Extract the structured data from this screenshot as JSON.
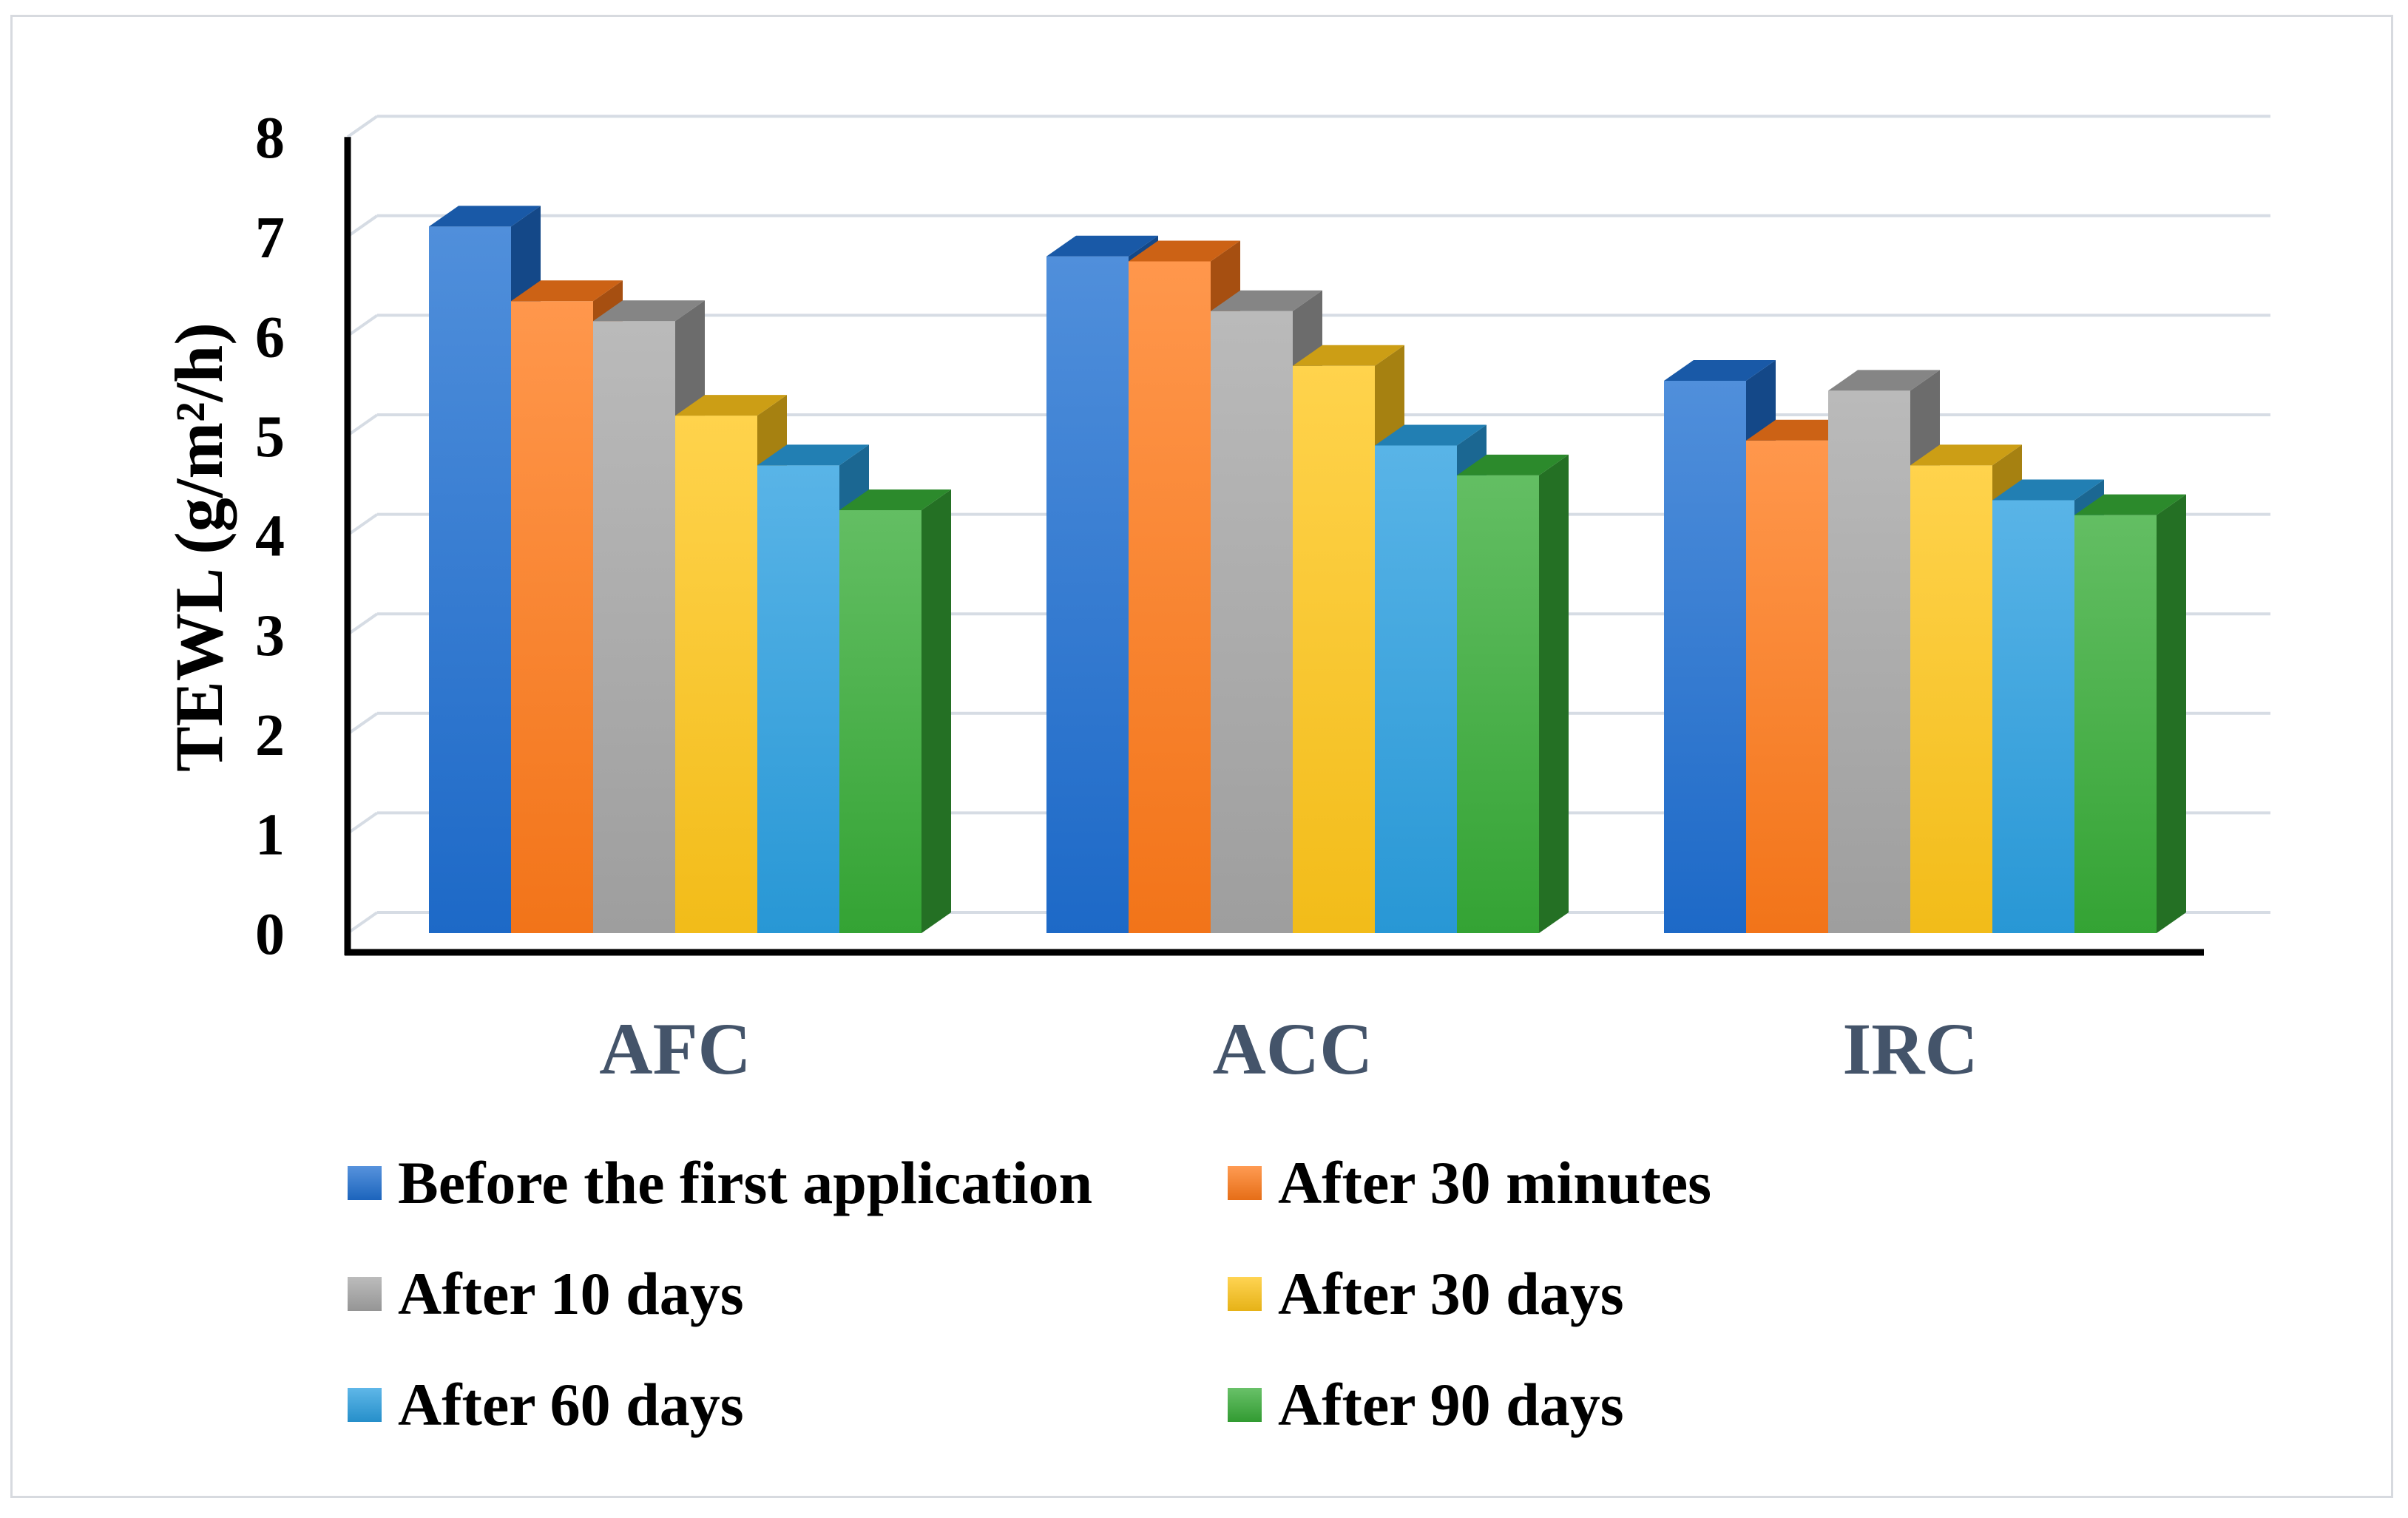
{
  "chart_data": {
    "type": "bar",
    "title": "",
    "xlabel": "",
    "ylabel": "TEWL (g/m²/h)",
    "ylim": [
      0,
      8
    ],
    "yticks": [
      "0",
      "1",
      "2",
      "3",
      "4",
      "5",
      "6",
      "7",
      "8"
    ],
    "categories": [
      "AFC",
      "ACC",
      "IRC"
    ],
    "series": [
      {
        "name": "Before the first application",
        "values": [
          7.1,
          6.8,
          5.55
        ],
        "color": "#1f6fd1"
      },
      {
        "name": "After 30 minutes",
        "values": [
          6.35,
          6.75,
          4.95
        ],
        "color": "#ff7a1a"
      },
      {
        "name": "After 10 days",
        "values": [
          6.15,
          6.25,
          5.45
        ],
        "color": "#a6a6a6"
      },
      {
        "name": "After 30 days",
        "values": [
          5.2,
          5.7,
          4.7
        ],
        "color": "#ffc61a"
      },
      {
        "name": "After 60 days",
        "values": [
          4.7,
          4.9,
          4.35
        ],
        "color": "#2a9fe0"
      },
      {
        "name": "After 90 days",
        "values": [
          4.25,
          4.6,
          4.2
        ],
        "color": "#37ac37"
      }
    ],
    "legend_position": "bottom",
    "grid": true
  }
}
